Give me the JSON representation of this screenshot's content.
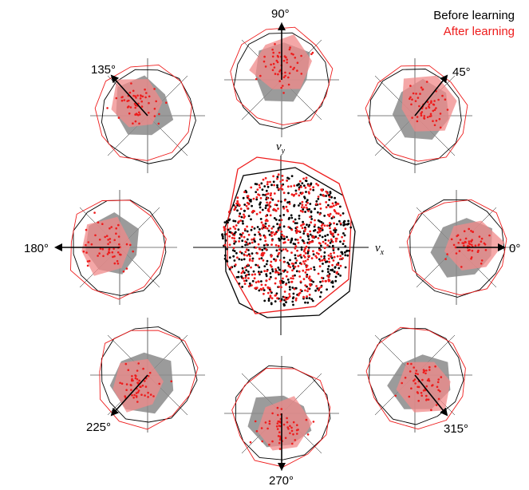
{
  "legend": {
    "before_label": "Before learning",
    "after_label": "After learning"
  },
  "colors": {
    "before": "#000000",
    "after": "#ee1c1c",
    "before_fill": "#8a8a8a",
    "after_fill": "#f08a8a"
  },
  "center_plot": {
    "x_axis_label": "v",
    "x_axis_sub": "x",
    "y_axis_label": "v",
    "y_axis_sub": "y"
  },
  "directions": [
    {
      "id": "0",
      "label": "0°",
      "angle": 0
    },
    {
      "id": "45",
      "label": "45°",
      "angle": 45
    },
    {
      "id": "90",
      "label": "90°",
      "angle": 90
    },
    {
      "id": "135",
      "label": "135°",
      "angle": 135
    },
    {
      "id": "180",
      "label": "180°",
      "angle": 180
    },
    {
      "id": "225",
      "label": "225°",
      "angle": 225
    },
    {
      "id": "270",
      "label": "270°",
      "angle": 270
    },
    {
      "id": "315",
      "label": "315°",
      "angle": 315
    }
  ]
}
